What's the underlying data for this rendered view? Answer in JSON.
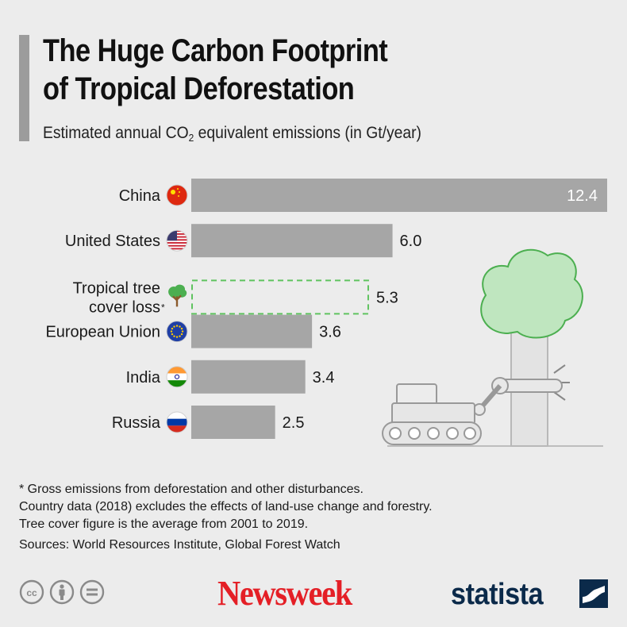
{
  "header": {
    "title_line1": "The Huge Carbon Footprint",
    "title_line2": "of Tropical Deforestation",
    "subtitle_pre": "Estimated annual CO",
    "subtitle_sub": "2",
    "subtitle_post": " equivalent emissions (in Gt/year)"
  },
  "chart_data": {
    "type": "bar",
    "orientation": "horizontal",
    "categories": [
      "China",
      "United States",
      "Tropical tree cover loss*",
      "European Union",
      "India",
      "Russia"
    ],
    "category_lines": [
      [
        "China"
      ],
      [
        "United States"
      ],
      [
        "Tropical tree",
        "cover loss"
      ],
      [
        "European Union"
      ],
      [
        "India"
      ],
      [
        "Russia"
      ]
    ],
    "category_icons": [
      "china-flag-icon",
      "usa-flag-icon",
      "tree-icon",
      "eu-flag-icon",
      "india-flag-icon",
      "russia-flag-icon"
    ],
    "values": [
      12.4,
      6.0,
      5.3,
      3.6,
      3.4,
      2.5
    ],
    "value_labels": [
      "12.4",
      "6.0",
      "5.3",
      "3.6",
      "3.4",
      "2.5"
    ],
    "highlighted": [
      false,
      false,
      true,
      false,
      false,
      false
    ],
    "xlim": [
      0,
      12.4
    ],
    "unit": "Gt/year",
    "colors": {
      "bar": "#a6a6a6",
      "dashed": "#5fc35f",
      "label_inside": "#ffffff"
    }
  },
  "footnotes": [
    "* Gross emissions from deforestation and other disturbances.",
    "Country data (2018) excludes the effects of land-use change and forestry.",
    "Tree cover figure is the average from 2001 to 2019."
  ],
  "sources": "Sources: World Resources Institute, Global Forest Watch",
  "footer": {
    "license_icons": [
      "cc-icon",
      "attribution-icon",
      "no-derivatives-icon"
    ],
    "publisher": "Newsweek",
    "brand": "statista"
  }
}
